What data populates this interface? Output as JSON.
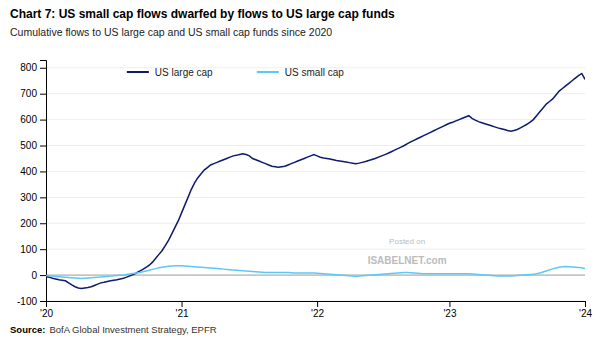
{
  "chart_data": {
    "type": "line",
    "title": "Chart 7: US small cap flows dwarfed by flows to US large cap funds",
    "subtitle": "Cumulative flows to US large cap and US small cap funds since 2020",
    "source": [
      "Source:",
      "BofA Global Investment Strategy, EPFR"
    ],
    "annotations": [
      "Posted on",
      "ISABELNET.com"
    ],
    "categories": [
      "'20",
      null,
      null,
      null,
      null,
      null,
      null,
      null,
      null,
      null,
      null,
      null,
      null,
      null,
      null,
      null,
      null,
      null,
      null,
      null,
      null,
      null,
      null,
      null,
      null,
      null,
      null,
      null,
      null,
      null,
      null,
      null,
      null,
      null,
      null,
      null,
      null,
      null,
      null,
      null,
      null,
      null,
      "'21",
      null,
      null,
      null,
      null,
      null,
      null,
      null,
      null,
      null,
      null,
      null,
      null,
      null,
      null,
      null,
      null,
      null,
      null,
      null,
      null,
      null,
      null,
      null,
      null,
      null,
      null,
      null,
      null,
      null,
      null,
      null,
      null,
      null,
      null,
      null,
      null,
      null,
      null,
      null,
      null,
      null,
      "'22",
      null,
      null,
      null,
      null,
      null,
      null,
      null,
      null,
      null,
      null,
      null,
      null,
      null,
      null,
      null,
      null,
      null,
      null,
      null,
      null,
      null,
      null,
      null,
      null,
      null,
      null,
      null,
      null,
      null,
      null,
      null,
      null,
      null,
      null,
      null,
      null,
      null,
      null,
      null,
      null,
      "'23",
      null,
      null,
      null,
      null,
      null,
      null,
      null,
      null,
      null,
      null,
      null,
      null,
      null,
      null,
      null,
      null,
      null,
      null,
      null,
      null,
      null,
      null,
      null,
      null,
      null,
      null,
      null,
      null,
      null,
      null,
      null,
      null,
      null,
      null,
      null,
      null,
      null,
      null,
      null,
      null,
      null,
      "'24"
    ],
    "series": [
      {
        "name": "US large cap",
        "color": "#0d1a6e",
        "values": [
          -5,
          -8,
          -12,
          -15,
          -18,
          -20,
          -22,
          -30,
          -38,
          -45,
          -50,
          -52,
          -50,
          -48,
          -45,
          -40,
          -35,
          -30,
          -28,
          -25,
          -22,
          -20,
          -18,
          -15,
          -12,
          -8,
          -3,
          2,
          8,
          15,
          22,
          30,
          38,
          50,
          65,
          80,
          95,
          115,
          135,
          160,
          185,
          210,
          240,
          270,
          300,
          330,
          355,
          375,
          390,
          405,
          415,
          425,
          430,
          435,
          440,
          445,
          450,
          455,
          460,
          462,
          465,
          468,
          465,
          460,
          450,
          445,
          440,
          435,
          430,
          425,
          420,
          418,
          416,
          418,
          420,
          425,
          430,
          435,
          440,
          445,
          450,
          455,
          460,
          465,
          460,
          455,
          452,
          450,
          448,
          445,
          442,
          440,
          438,
          436,
          434,
          432,
          430,
          432,
          435,
          438,
          442,
          446,
          450,
          455,
          460,
          465,
          470,
          476,
          482,
          488,
          494,
          500,
          507,
          514,
          520,
          526,
          532,
          538,
          544,
          550,
          556,
          562,
          568,
          574,
          580,
          586,
          590,
          595,
          600,
          605,
          610,
          615,
          605,
          598,
          592,
          588,
          584,
          580,
          576,
          572,
          568,
          565,
          562,
          558,
          555,
          558,
          562,
          568,
          575,
          582,
          590,
          600,
          615,
          630,
          645,
          660,
          670,
          680,
          695,
          710,
          720,
          730,
          740,
          750,
          760,
          770,
          778,
          755
        ]
      },
      {
        "name": "US small cap",
        "color": "#5bc8f5",
        "values": [
          -2,
          -3,
          -4,
          -5,
          -6,
          -7,
          -8,
          -9,
          -10,
          -11,
          -12,
          -13,
          -12,
          -11,
          -10,
          -9,
          -8,
          -7,
          -6,
          -5,
          -4,
          -3,
          -2,
          -1,
          0,
          2,
          4,
          6,
          8,
          10,
          13,
          16,
          19,
          22,
          25,
          28,
          30,
          32,
          34,
          35,
          36,
          36,
          36,
          35,
          34,
          33,
          32,
          31,
          30,
          29,
          28,
          27,
          26,
          25,
          24,
          23,
          22,
          21,
          20,
          19,
          18,
          17,
          16,
          15,
          14,
          13,
          12,
          11,
          10,
          10,
          10,
          10,
          10,
          10,
          10,
          10,
          9,
          8,
          8,
          8,
          8,
          8,
          8,
          8,
          7,
          6,
          5,
          4,
          3,
          2,
          1,
          0,
          -1,
          -2,
          -3,
          -4,
          -5,
          -4,
          -3,
          -2,
          -1,
          0,
          1,
          2,
          3,
          4,
          5,
          6,
          7,
          8,
          9,
          10,
          10,
          9,
          8,
          7,
          6,
          5,
          5,
          5,
          5,
          5,
          5,
          5,
          5,
          5,
          5,
          5,
          5,
          5,
          5,
          5,
          4,
          3,
          2,
          1,
          0,
          -1,
          -2,
          -3,
          -4,
          -4,
          -4,
          -4,
          -4,
          -3,
          -2,
          -1,
          0,
          1,
          2,
          3,
          5,
          8,
          12,
          16,
          20,
          24,
          27,
          30,
          32,
          33,
          32,
          31,
          30,
          29,
          28,
          25
        ]
      }
    ],
    "ylim": [
      -100,
      830
    ],
    "yticks": [
      -100,
      0,
      100,
      200,
      300,
      400,
      500,
      600,
      700,
      800
    ],
    "grid": true,
    "legend": "upper left"
  }
}
